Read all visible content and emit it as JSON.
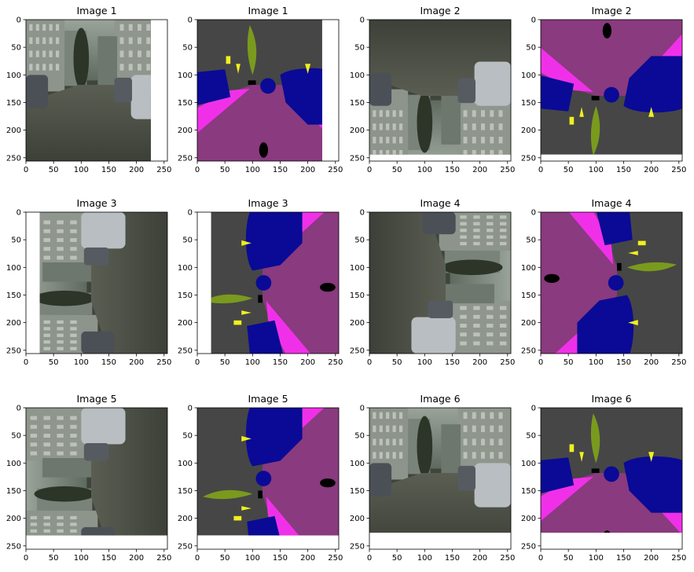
{
  "figure": {
    "panels": [
      {
        "title": "Image 1",
        "kind": "photo",
        "scene": "street-forward",
        "content_w": 256,
        "content_h": 256,
        "pad_right": 30
      },
      {
        "title": "Image 1",
        "kind": "seg",
        "scene": "street-forward",
        "content_w": 256,
        "content_h": 256,
        "pad_right": 30
      },
      {
        "title": "Image 2",
        "kind": "photo",
        "scene": "street-flipped",
        "content_w": 256,
        "content_h": 256,
        "pad_bottom": 12
      },
      {
        "title": "Image 2",
        "kind": "seg",
        "scene": "street-flipped",
        "content_w": 256,
        "content_h": 256,
        "pad_bottom": 12
      },
      {
        "title": "Image 3",
        "kind": "photo",
        "scene": "street-rot-left",
        "content_w": 256,
        "content_h": 256,
        "pad_left": 25
      },
      {
        "title": "Image 3",
        "kind": "seg",
        "scene": "street-rot-left",
        "content_w": 256,
        "content_h": 256,
        "pad_left": 25
      },
      {
        "title": "Image 4",
        "kind": "photo",
        "scene": "street-rot-right",
        "content_w": 256,
        "content_h": 256
      },
      {
        "title": "Image 4",
        "kind": "seg",
        "scene": "street-rot-right",
        "content_w": 256,
        "content_h": 256
      },
      {
        "title": "Image 5",
        "kind": "photo",
        "scene": "street-rot-left2",
        "content_w": 256,
        "content_h": 256,
        "pad_bottom": 25
      },
      {
        "title": "Image 5",
        "kind": "seg",
        "scene": "street-rot-left2",
        "content_w": 256,
        "content_h": 256,
        "pad_bottom": 25
      },
      {
        "title": "Image 6",
        "kind": "photo",
        "scene": "street-forward2",
        "content_w": 256,
        "content_h": 256,
        "pad_bottom": 30
      },
      {
        "title": "Image 6",
        "kind": "seg",
        "scene": "street-forward2",
        "content_w": 256,
        "content_h": 256,
        "pad_bottom": 30
      }
    ],
    "x_ticks": [
      "0",
      "50",
      "100",
      "150",
      "200",
      "250"
    ],
    "y_ticks": [
      "0",
      "50",
      "100",
      "150",
      "200",
      "250"
    ],
    "colors": {
      "road": "#8a3a7e",
      "sidewalk": "#f030e8",
      "car": "#0a0a96",
      "vegetation": "#7a9a1e",
      "building": "#464646",
      "sign": "#f0f020",
      "pole": "#000000",
      "ego": "#000000"
    }
  }
}
